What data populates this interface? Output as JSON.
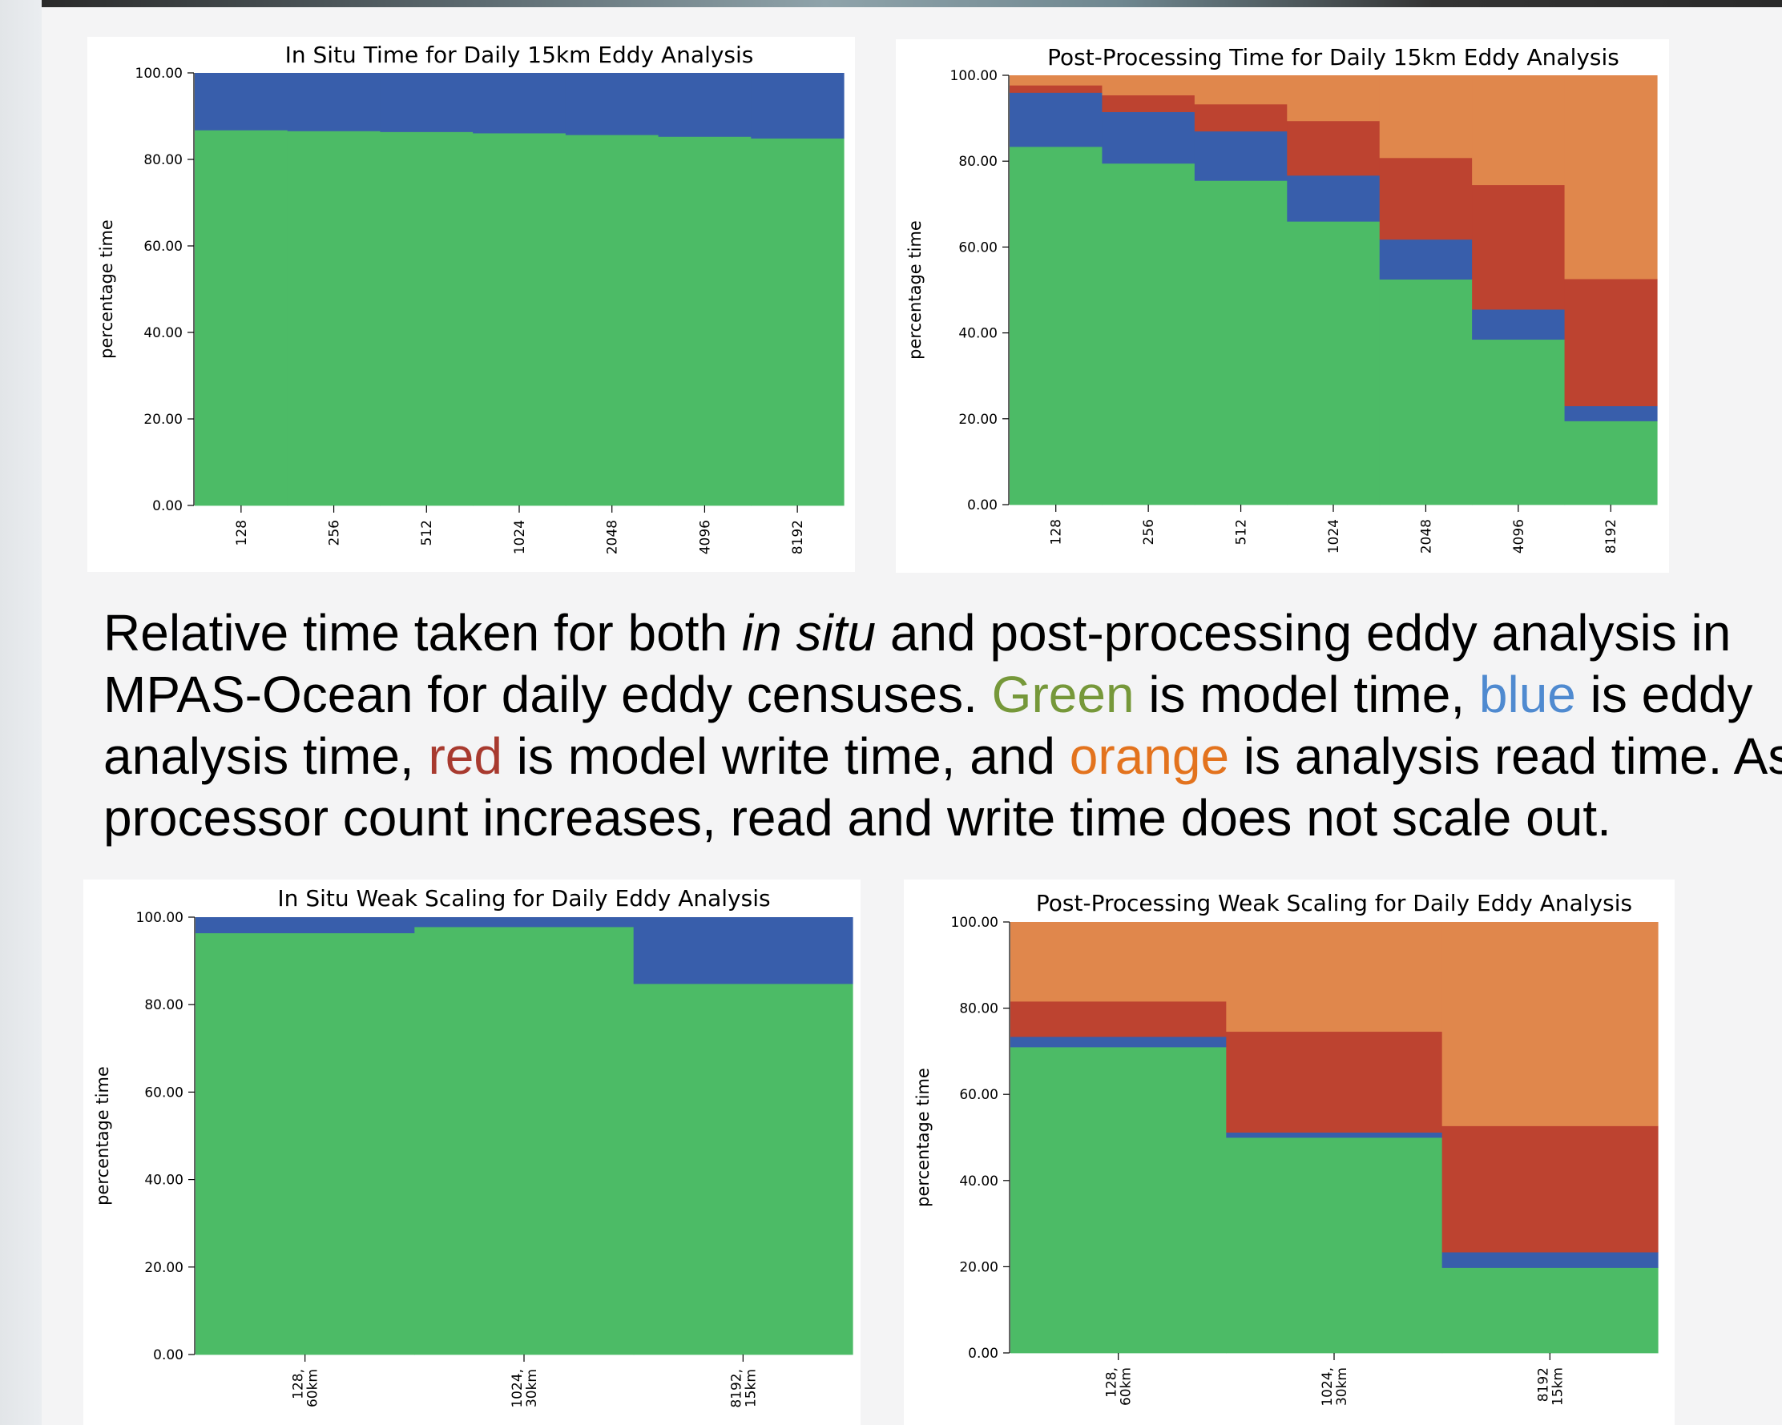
{
  "colors": {
    "model": "#4cbb66",
    "eddy_analysis": "#385eab",
    "model_write": "#bd4330",
    "analysis_read": "#e0874c",
    "caption_green": "#76983a",
    "caption_blue": "#4f8ad0",
    "caption_red": "#a83a2f",
    "caption_orange": "#e3731e"
  },
  "caption": {
    "line1_a": "Relative time taken for both ",
    "line1_italic": "in situ",
    "line1_b": " and post-processing eddy analysis in",
    "line2_a": "MPAS-Ocean for daily eddy censuses. ",
    "green_word": "Green",
    "line2_b": " is model time, ",
    "blue_word": "blue",
    "line2_c": " is eddy",
    "line3_a": "analysis time, ",
    "red_word": "red",
    "line3_b": " is model write time, and ",
    "orange_word": "orange",
    "line3_c": " is analysis read time. As",
    "line4": "processor count increases, read and write time does not scale out."
  },
  "chart_data": [
    {
      "type": "bar",
      "stacked": true,
      "title": "In Situ Time for Daily 15km Eddy Analysis",
      "xlabel": "",
      "ylabel": "percentage time",
      "ylim": [
        0,
        100
      ],
      "yticks": [
        "0.00",
        "20.00",
        "40.00",
        "60.00",
        "80.00",
        "100.00"
      ],
      "categories": [
        "128",
        "256",
        "512",
        "1024",
        "2048",
        "4096",
        "8192"
      ],
      "series": [
        {
          "color": "#4cbb66",
          "values": [
            86.8,
            86.6,
            86.4,
            86.1,
            85.7,
            85.3,
            84.9
          ]
        },
        {
          "color": "#385eab",
          "values": [
            13.2,
            13.4,
            13.6,
            13.9,
            14.3,
            14.7,
            15.1
          ]
        }
      ]
    },
    {
      "type": "bar",
      "stacked": true,
      "title": "Post-Processing Time for Daily 15km Eddy Analysis",
      "xlabel": "",
      "ylabel": "percentage time",
      "ylim": [
        0,
        100
      ],
      "yticks": [
        "0.00",
        "20.00",
        "40.00",
        "60.00",
        "80.00",
        "100.00"
      ],
      "categories": [
        "128",
        "256",
        "512",
        "1024",
        "2048",
        "4096",
        "8192"
      ],
      "series": [
        {
          "color": "#4cbb66",
          "values": [
            83.4,
            79.5,
            75.5,
            66.0,
            52.5,
            38.5,
            19.5
          ]
        },
        {
          "color": "#385eab",
          "values": [
            12.6,
            12.0,
            11.5,
            10.7,
            9.3,
            7.0,
            3.5
          ]
        },
        {
          "color": "#bd4330",
          "values": [
            1.7,
            3.9,
            6.3,
            12.7,
            19.0,
            29.0,
            29.6
          ]
        },
        {
          "color": "#e0874c",
          "values": [
            2.3,
            4.6,
            6.7,
            10.6,
            19.2,
            25.5,
            47.4
          ]
        }
      ]
    },
    {
      "type": "bar",
      "stacked": true,
      "title": "In Situ Weak Scaling for Daily Eddy Analysis",
      "xlabel": "",
      "ylabel": "percentage time",
      "ylim": [
        0,
        100
      ],
      "yticks": [
        "0.00",
        "20.00",
        "40.00",
        "60.00",
        "80.00",
        "100.00"
      ],
      "categories": [
        [
          "128,",
          "60km"
        ],
        [
          "1024,",
          "30km"
        ],
        [
          "8192,",
          "15km"
        ]
      ],
      "series": [
        {
          "color": "#4cbb66",
          "values": [
            96.4,
            97.8,
            84.8
          ]
        },
        {
          "color": "#385eab",
          "values": [
            3.6,
            2.2,
            15.2
          ]
        }
      ]
    },
    {
      "type": "bar",
      "stacked": true,
      "title": "Post-Processing Weak Scaling for Daily Eddy Analysis",
      "xlabel": "",
      "ylabel": "percentage time",
      "ylim": [
        0,
        100
      ],
      "yticks": [
        "0.00",
        "20.00",
        "40.00",
        "60.00",
        "80.00",
        "100.00"
      ],
      "categories": [
        [
          "128,",
          "60km"
        ],
        [
          "1024,",
          "30km"
        ],
        [
          "8192",
          "15km"
        ]
      ],
      "series": [
        {
          "color": "#4cbb66",
          "values": [
            71.0,
            50.0,
            19.8
          ]
        },
        {
          "color": "#385eab",
          "values": [
            2.4,
            1.2,
            3.6
          ]
        },
        {
          "color": "#bd4330",
          "values": [
            8.2,
            23.4,
            29.3
          ]
        },
        {
          "color": "#e0874c",
          "values": [
            18.4,
            25.4,
            47.3
          ]
        }
      ]
    }
  ]
}
